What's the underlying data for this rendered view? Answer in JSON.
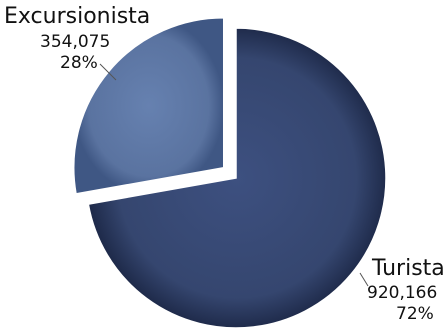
{
  "chart_data": {
    "type": "pie",
    "slices": [
      {
        "label": "Turista",
        "value": 920166,
        "value_text": "920,166",
        "percent": 72,
        "percent_text": "72%",
        "color": "#35466f",
        "exploded": false
      },
      {
        "label": "Excursionista",
        "value": 354075,
        "value_text": "354,075",
        "percent": 28,
        "percent_text": "28%",
        "color": "#5a73a0",
        "exploded": true
      }
    ],
    "legend": "none",
    "style": "3d-shaded"
  }
}
